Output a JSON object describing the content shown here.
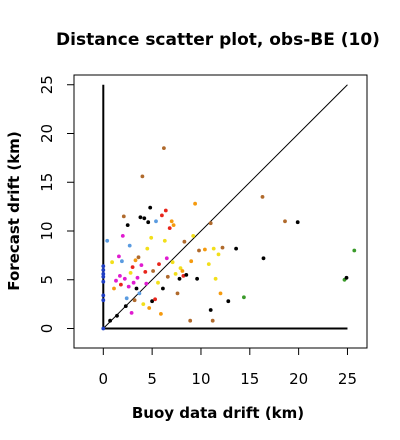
{
  "chart_data": {
    "type": "scatter",
    "title": "Distance scatter plot, obs-BE (10)",
    "xlabel": "Buoy data drift (km)",
    "ylabel": "Forecast drift (km)",
    "xlim": [
      -3,
      27
    ],
    "ylim": [
      -2,
      26
    ],
    "xticks": [
      0,
      5,
      10,
      15,
      20,
      25
    ],
    "yticks": [
      0,
      5,
      10,
      15,
      20,
      25
    ],
    "grid": false,
    "legend": "none",
    "reference_lines": [
      {
        "name": "identity",
        "x": [
          0,
          25
        ],
        "y": [
          0,
          25
        ]
      },
      {
        "name": "y-axis-bar",
        "x": [
          0,
          0
        ],
        "y": [
          0,
          25
        ]
      },
      {
        "name": "x-axis-bar",
        "x": [
          0,
          25
        ],
        "y": [
          0,
          0
        ]
      }
    ],
    "colors": {
      "black": "#000000",
      "red": "#e8251b",
      "magenta": "#e01bd0",
      "orange": "#f59a0e",
      "yellow": "#f2df1a",
      "brown": "#b06a2c",
      "blue": "#1f3ec4",
      "lightblue": "#5a9be0",
      "green": "#3a9a2a"
    },
    "points": [
      {
        "x": 0.0,
        "y": 0.0,
        "c": "blue"
      },
      {
        "x": 0.0,
        "y": 2.9,
        "c": "blue"
      },
      {
        "x": 0.0,
        "y": 3.4,
        "c": "blue"
      },
      {
        "x": 0.0,
        "y": 4.8,
        "c": "blue"
      },
      {
        "x": 0.0,
        "y": 5.3,
        "c": "blue"
      },
      {
        "x": 0.0,
        "y": 5.6,
        "c": "blue"
      },
      {
        "x": 0.0,
        "y": 6.0,
        "c": "blue"
      },
      {
        "x": 0.0,
        "y": 6.4,
        "c": "blue"
      },
      {
        "x": 0.4,
        "y": 9.0,
        "c": "lightblue"
      },
      {
        "x": 0.7,
        "y": 0.8,
        "c": "black"
      },
      {
        "x": 0.9,
        "y": 6.8,
        "c": "yellow"
      },
      {
        "x": 1.1,
        "y": 4.1,
        "c": "orange"
      },
      {
        "x": 1.3,
        "y": 4.9,
        "c": "magenta"
      },
      {
        "x": 1.4,
        "y": 1.3,
        "c": "black"
      },
      {
        "x": 1.6,
        "y": 7.4,
        "c": "magenta"
      },
      {
        "x": 1.7,
        "y": 5.4,
        "c": "magenta"
      },
      {
        "x": 1.8,
        "y": 4.5,
        "c": "red"
      },
      {
        "x": 1.9,
        "y": 6.9,
        "c": "lightblue"
      },
      {
        "x": 2.0,
        "y": 9.5,
        "c": "magenta"
      },
      {
        "x": 2.1,
        "y": 11.5,
        "c": "brown"
      },
      {
        "x": 2.2,
        "y": 5.1,
        "c": "magenta"
      },
      {
        "x": 2.3,
        "y": 2.3,
        "c": "black"
      },
      {
        "x": 2.4,
        "y": 3.1,
        "c": "lightblue"
      },
      {
        "x": 2.5,
        "y": 10.6,
        "c": "black"
      },
      {
        "x": 2.6,
        "y": 4.3,
        "c": "magenta"
      },
      {
        "x": 2.7,
        "y": 8.5,
        "c": "lightblue"
      },
      {
        "x": 2.8,
        "y": 5.7,
        "c": "yellow"
      },
      {
        "x": 2.9,
        "y": 1.6,
        "c": "magenta"
      },
      {
        "x": 3.0,
        "y": 6.3,
        "c": "red"
      },
      {
        "x": 3.1,
        "y": 4.7,
        "c": "magenta"
      },
      {
        "x": 3.2,
        "y": 2.9,
        "c": "brown"
      },
      {
        "x": 3.3,
        "y": 7.0,
        "c": "orange"
      },
      {
        "x": 3.4,
        "y": 4.1,
        "c": "black"
      },
      {
        "x": 3.5,
        "y": 5.2,
        "c": "magenta"
      },
      {
        "x": 3.6,
        "y": 7.3,
        "c": "brown"
      },
      {
        "x": 3.7,
        "y": 3.6,
        "c": "lightblue"
      },
      {
        "x": 3.8,
        "y": 11.4,
        "c": "black"
      },
      {
        "x": 3.9,
        "y": 6.5,
        "c": "magenta"
      },
      {
        "x": 4.0,
        "y": 15.6,
        "c": "brown"
      },
      {
        "x": 4.1,
        "y": 2.5,
        "c": "yellow"
      },
      {
        "x": 4.2,
        "y": 11.3,
        "c": "black"
      },
      {
        "x": 4.3,
        "y": 5.8,
        "c": "red"
      },
      {
        "x": 4.4,
        "y": 4.6,
        "c": "magenta"
      },
      {
        "x": 4.5,
        "y": 8.2,
        "c": "yellow"
      },
      {
        "x": 4.6,
        "y": 10.9,
        "c": "black"
      },
      {
        "x": 4.7,
        "y": 2.1,
        "c": "orange"
      },
      {
        "x": 4.8,
        "y": 12.4,
        "c": "black"
      },
      {
        "x": 4.9,
        "y": 9.3,
        "c": "yellow"
      },
      {
        "x": 5.0,
        "y": 2.8,
        "c": "black"
      },
      {
        "x": 5.1,
        "y": 5.9,
        "c": "brown"
      },
      {
        "x": 5.3,
        "y": 3.0,
        "c": "red"
      },
      {
        "x": 5.4,
        "y": 11.0,
        "c": "lightblue"
      },
      {
        "x": 5.6,
        "y": 4.7,
        "c": "yellow"
      },
      {
        "x": 5.7,
        "y": 6.6,
        "c": "red"
      },
      {
        "x": 5.9,
        "y": 1.5,
        "c": "orange"
      },
      {
        "x": 6.0,
        "y": 11.6,
        "c": "red"
      },
      {
        "x": 6.1,
        "y": 4.1,
        "c": "black"
      },
      {
        "x": 6.2,
        "y": 18.5,
        "c": "brown"
      },
      {
        "x": 6.3,
        "y": 9.0,
        "c": "yellow"
      },
      {
        "x": 6.4,
        "y": 12.1,
        "c": "red"
      },
      {
        "x": 6.5,
        "y": 7.2,
        "c": "magenta"
      },
      {
        "x": 6.6,
        "y": 5.3,
        "c": "brown"
      },
      {
        "x": 6.8,
        "y": 10.3,
        "c": "red"
      },
      {
        "x": 7.0,
        "y": 11.0,
        "c": "orange"
      },
      {
        "x": 7.1,
        "y": 6.8,
        "c": "yellow"
      },
      {
        "x": 7.2,
        "y": 10.6,
        "c": "orange"
      },
      {
        "x": 7.4,
        "y": 5.6,
        "c": "yellow"
      },
      {
        "x": 7.6,
        "y": 3.6,
        "c": "brown"
      },
      {
        "x": 7.8,
        "y": 5.1,
        "c": "black"
      },
      {
        "x": 7.9,
        "y": 6.2,
        "c": "yellow"
      },
      {
        "x": 8.1,
        "y": 5.9,
        "c": "orange"
      },
      {
        "x": 8.2,
        "y": 5.4,
        "c": "red"
      },
      {
        "x": 8.3,
        "y": 8.9,
        "c": "brown"
      },
      {
        "x": 8.5,
        "y": 5.5,
        "c": "black"
      },
      {
        "x": 8.9,
        "y": 0.8,
        "c": "brown"
      },
      {
        "x": 9.0,
        "y": 6.9,
        "c": "orange"
      },
      {
        "x": 9.2,
        "y": 9.5,
        "c": "yellow"
      },
      {
        "x": 9.4,
        "y": 12.8,
        "c": "orange"
      },
      {
        "x": 9.6,
        "y": 5.1,
        "c": "black"
      },
      {
        "x": 9.8,
        "y": 8.0,
        "c": "brown"
      },
      {
        "x": 10.4,
        "y": 8.1,
        "c": "orange"
      },
      {
        "x": 10.8,
        "y": 6.6,
        "c": "yellow"
      },
      {
        "x": 11.0,
        "y": 10.8,
        "c": "brown"
      },
      {
        "x": 11.0,
        "y": 1.9,
        "c": "black"
      },
      {
        "x": 11.2,
        "y": 0.8,
        "c": "brown"
      },
      {
        "x": 11.3,
        "y": 8.2,
        "c": "yellow"
      },
      {
        "x": 11.5,
        "y": 5.1,
        "c": "yellow"
      },
      {
        "x": 11.8,
        "y": 7.6,
        "c": "yellow"
      },
      {
        "x": 12.0,
        "y": 3.6,
        "c": "orange"
      },
      {
        "x": 12.2,
        "y": 8.3,
        "c": "brown"
      },
      {
        "x": 12.8,
        "y": 2.8,
        "c": "black"
      },
      {
        "x": 13.6,
        "y": 8.2,
        "c": "black"
      },
      {
        "x": 14.4,
        "y": 3.2,
        "c": "green"
      },
      {
        "x": 16.3,
        "y": 13.5,
        "c": "brown"
      },
      {
        "x": 16.4,
        "y": 7.2,
        "c": "black"
      },
      {
        "x": 18.6,
        "y": 11.0,
        "c": "brown"
      },
      {
        "x": 19.9,
        "y": 10.9,
        "c": "black"
      },
      {
        "x": 24.7,
        "y": 5.0,
        "c": "green"
      },
      {
        "x": 24.9,
        "y": 5.2,
        "c": "black"
      },
      {
        "x": 25.7,
        "y": 8.0,
        "c": "green"
      }
    ]
  }
}
